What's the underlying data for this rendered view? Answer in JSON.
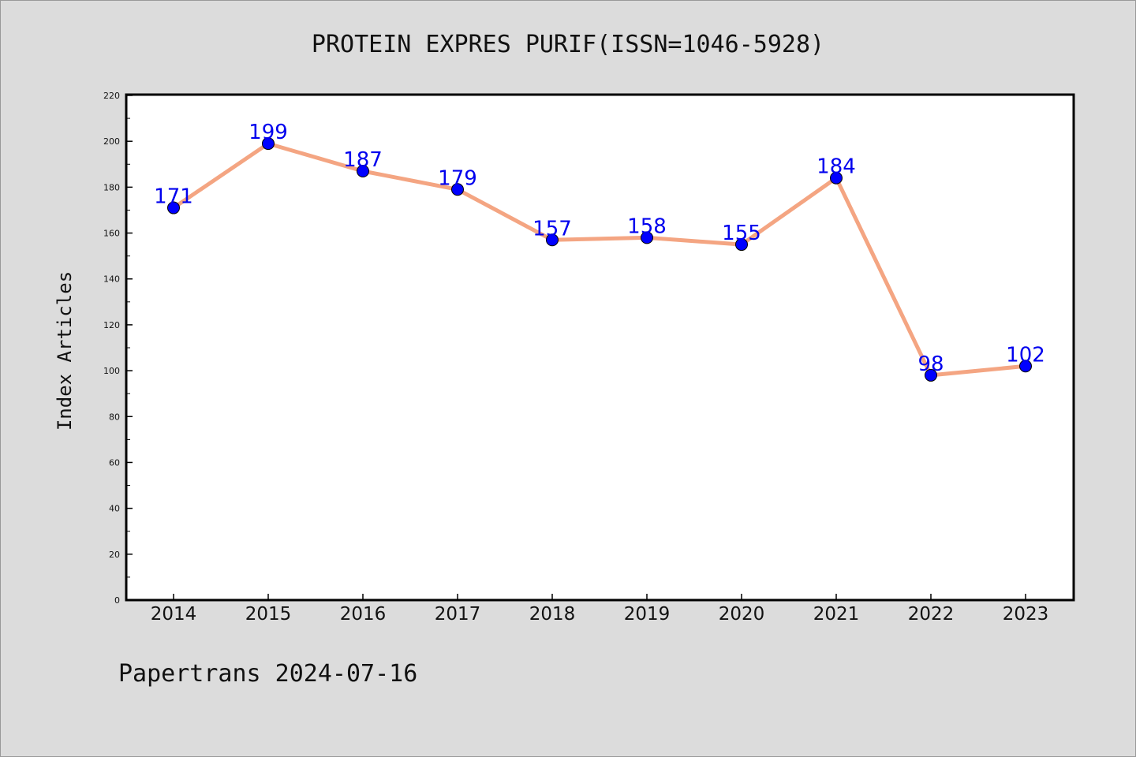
{
  "chart_data": {
    "type": "line",
    "title": "PROTEIN EXPRES PURIF(ISSN=1046-5928)",
    "ylabel": "Index Articles",
    "xlabel": "",
    "footer": "Papertrans 2024-07-16",
    "categories": [
      "2014",
      "2015",
      "2016",
      "2017",
      "2018",
      "2019",
      "2020",
      "2021",
      "2022",
      "2023"
    ],
    "values": [
      171,
      199,
      187,
      179,
      157,
      158,
      155,
      184,
      98,
      102
    ],
    "ylim": [
      0,
      220
    ],
    "yticks": [
      0,
      20,
      40,
      60,
      80,
      100,
      120,
      140,
      160,
      180,
      200,
      220
    ],
    "grid": false,
    "legend": "none",
    "colors": {
      "line": "#f4a582",
      "marker": "#0000ff",
      "label": "#0000ee",
      "plot_bg": "#ffffff",
      "page_bg": "#dcdcdc"
    }
  }
}
